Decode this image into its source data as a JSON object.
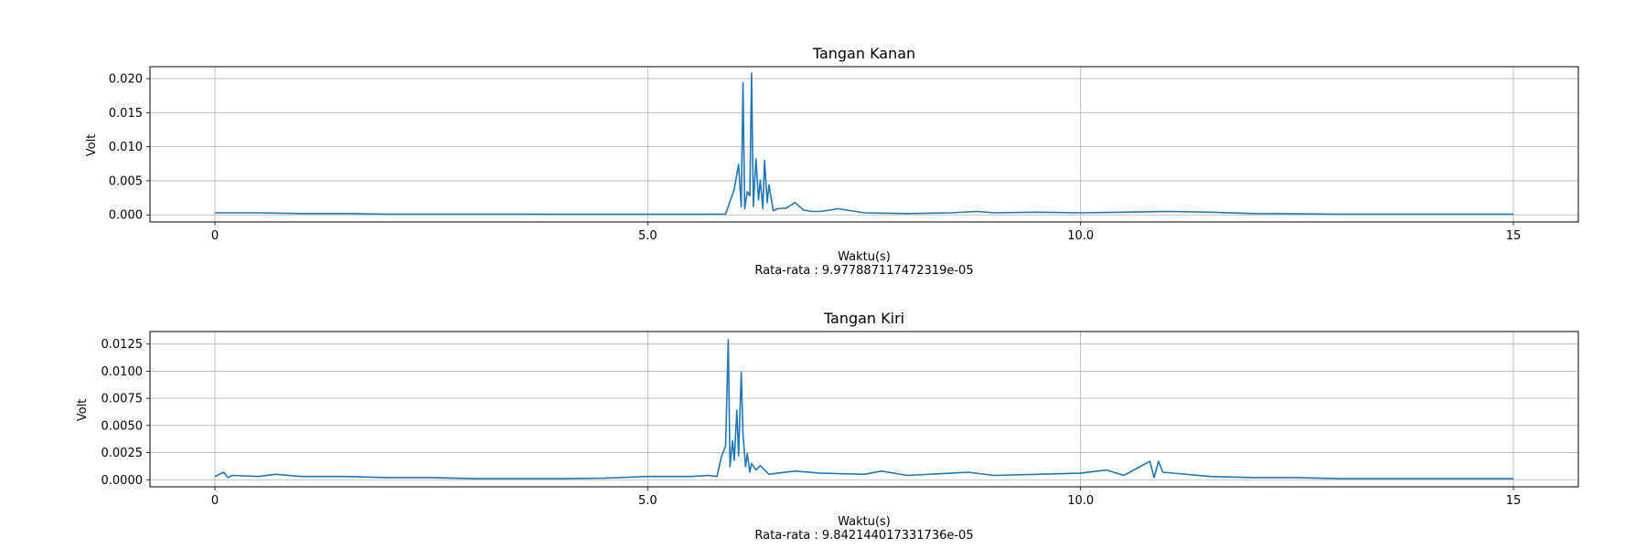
{
  "chart_data": [
    {
      "type": "line",
      "title": "Tangan Kanan",
      "xlabel": "Waktu(s)",
      "ylabel": "Volt",
      "caption": "Rata-rata : 9.977887117472319e-05",
      "xlim": [
        -0.75,
        15.75
      ],
      "ylim": [
        -0.00104,
        0.02175
      ],
      "x_ticks": [
        0,
        5.0,
        10.0,
        15
      ],
      "x_tick_labels": [
        "0",
        "5.0",
        "10.0",
        "15"
      ],
      "y_ticks": [
        0.0,
        0.005,
        0.01,
        0.015,
        0.02
      ],
      "y_tick_labels": [
        "0.000",
        "0.005",
        "0.010",
        "0.015",
        "0.020"
      ],
      "grid": true,
      "color": "#1f77b4",
      "series": [
        {
          "x": [
            0,
            0.5,
            1.0,
            1.5,
            2.0,
            2.5,
            3.0,
            3.5,
            4.0,
            4.5,
            5.0,
            5.5,
            5.9,
            6.0,
            6.05,
            6.08,
            6.1,
            6.12,
            6.15,
            6.18,
            6.2,
            6.22,
            6.25,
            6.28,
            6.3,
            6.33,
            6.35,
            6.38,
            6.4,
            6.45,
            6.5,
            6.6,
            6.7,
            6.8,
            6.9,
            7.0,
            7.2,
            7.5,
            8.0,
            8.5,
            8.8,
            9.0,
            9.5,
            10.0,
            10.5,
            11.0,
            11.5,
            12.0,
            12.5,
            13.0,
            13.5,
            14.0,
            14.5,
            15.0
          ],
          "y": [
            0.0003,
            0.0003,
            0.0002,
            0.0002,
            0.0001,
            0.0001,
            0.0001,
            0.0001,
            8e-05,
            8e-05,
            8e-05,
            8e-05,
            0.0001,
            0.0038,
            0.0074,
            0.0012,
            0.0194,
            0.0009,
            0.0034,
            0.0028,
            0.0208,
            0.0012,
            0.0082,
            0.0022,
            0.0051,
            0.0009,
            0.008,
            0.0018,
            0.0044,
            0.0006,
            0.0009,
            0.001,
            0.0018,
            0.0007,
            0.0005,
            0.0005,
            0.0009,
            0.0003,
            0.0002,
            0.0003,
            0.0005,
            0.0003,
            0.0004,
            0.0003,
            0.0004,
            0.0005,
            0.0004,
            0.0002,
            0.00015,
            0.0001,
            0.0001,
            0.0001,
            0.0001,
            0.0001
          ]
        }
      ]
    },
    {
      "type": "line",
      "title": "Tangan Kiri",
      "xlabel": "Waktu(s)",
      "ylabel": "Volt",
      "caption": "Rata-rata : 9.842144017331736e-05",
      "xlim": [
        -0.75,
        15.75
      ],
      "ylim": [
        -0.00065,
        0.01365
      ],
      "x_ticks": [
        0,
        5.0,
        10.0,
        15
      ],
      "x_tick_labels": [
        "0",
        "5.0",
        "10.0",
        "15"
      ],
      "y_ticks": [
        0.0,
        0.0025,
        0.005,
        0.0075,
        0.01,
        0.0125
      ],
      "y_tick_labels": [
        "0.0000",
        "0.0025",
        "0.0050",
        "0.0075",
        "0.0100",
        "0.0125"
      ],
      "grid": true,
      "color": "#1f77b4",
      "series": [
        {
          "x": [
            0,
            0.1,
            0.15,
            0.2,
            0.5,
            0.7,
            1.0,
            1.5,
            2.0,
            2.5,
            3.0,
            3.5,
            4.0,
            4.5,
            5.0,
            5.5,
            5.7,
            5.8,
            5.85,
            5.9,
            5.93,
            5.95,
            5.98,
            6.0,
            6.03,
            6.05,
            6.08,
            6.1,
            6.13,
            6.15,
            6.18,
            6.2,
            6.25,
            6.3,
            6.4,
            6.5,
            6.7,
            7.0,
            7.5,
            7.7,
            8.0,
            8.5,
            8.7,
            9.0,
            9.5,
            10.0,
            10.3,
            10.5,
            10.8,
            10.85,
            10.9,
            10.95,
            11.5,
            12.0,
            12.5,
            13.0,
            13.5,
            14.0,
            14.5,
            15.0
          ],
          "y": [
            0.0003,
            0.0007,
            0.0002,
            0.0004,
            0.0003,
            0.0005,
            0.0003,
            0.0003,
            0.0002,
            0.0002,
            0.0001,
            0.0001,
            0.0001,
            0.00015,
            0.0003,
            0.0003,
            0.0004,
            0.0003,
            0.0021,
            0.0031,
            0.0129,
            0.0012,
            0.0036,
            0.0018,
            0.0064,
            0.0022,
            0.0099,
            0.0042,
            0.0012,
            0.0024,
            0.0007,
            0.0015,
            0.0009,
            0.0013,
            0.0005,
            0.0006,
            0.0008,
            0.0006,
            0.0005,
            0.0008,
            0.0004,
            0.0006,
            0.0007,
            0.0004,
            0.0005,
            0.0006,
            0.0009,
            0.0004,
            0.0017,
            0.0002,
            0.0017,
            0.0007,
            0.0003,
            0.0002,
            0.0002,
            0.0001,
            0.0001,
            0.0001,
            0.0001,
            0.0001
          ]
        }
      ]
    }
  ]
}
